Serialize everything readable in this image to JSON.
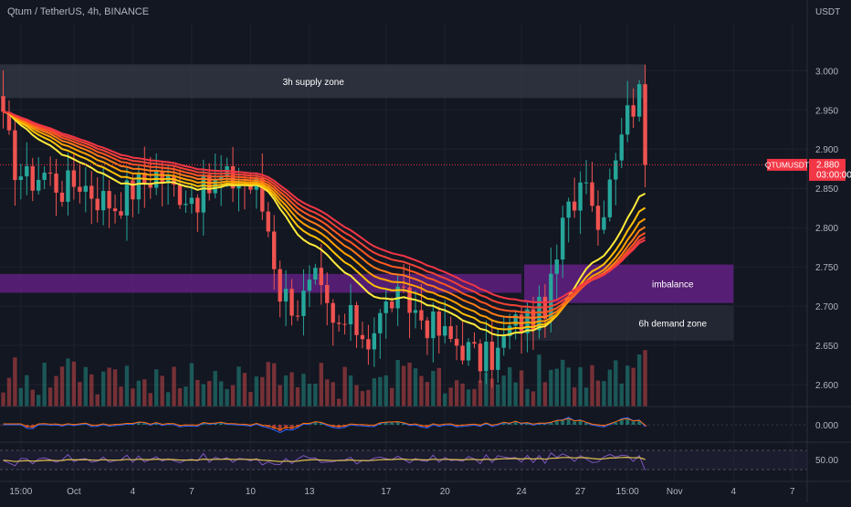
{
  "header": {
    "symbol_title": "Qtum / TetherUS, 4h, BINANCE",
    "currency": "USDT"
  },
  "price_tag": {
    "symbol": "QTUMUSDT",
    "price": "2.880",
    "countdown": "03:00:00",
    "value": 2.88
  },
  "colors": {
    "background": "#131722",
    "grid": "#1e222d",
    "text": "#b2b5be",
    "up": "#26a69a",
    "down": "#ef5350",
    "price_tag": "#f23645",
    "supply_zone": "#363a45",
    "imbalance": "#5b1f7a",
    "demand_zone": "#2a2e39",
    "ribbon": [
      "#f23645",
      "#f44336",
      "#ff5722",
      "#ff7a1a",
      "#ffa000",
      "#ffc107",
      "#ffeb3b"
    ],
    "macd_line": "#2962ff",
    "signal_line": "#ff6d00",
    "rsi_line": "#7e57c2",
    "rsi_ma": "#e0c050"
  },
  "chart_data": {
    "type": "candlestick",
    "symbol": "Qtum / TetherUS",
    "timeframe": "4h",
    "exchange": "BINANCE",
    "currency": "USDT",
    "ylim": [
      2.578,
      3.055
    ],
    "yticks": [
      3.0,
      2.95,
      2.9,
      2.85,
      2.8,
      2.75,
      2.7,
      2.65,
      2.6
    ],
    "ytick_labels": [
      "3.000",
      "2.950",
      "2.900",
      "2.850",
      "2.800",
      "2.750",
      "2.700",
      "2.650",
      "2.600"
    ],
    "x_axis_labels": [
      {
        "label": "15:00",
        "bar": 3
      },
      {
        "label": "Oct",
        "bar": 12
      },
      {
        "label": "4",
        "bar": 22
      },
      {
        "label": "7",
        "bar": 32
      },
      {
        "label": "10",
        "bar": 42
      },
      {
        "label": "13",
        "bar": 52
      },
      {
        "label": "17",
        "bar": 65
      },
      {
        "label": "20",
        "bar": 75
      },
      {
        "label": "24",
        "bar": 88
      },
      {
        "label": "27",
        "bar": 98
      },
      {
        "label": "15:00",
        "bar": 106
      },
      {
        "label": "Nov",
        "bar": 114
      },
      {
        "label": "4",
        "bar": 124
      },
      {
        "label": "7",
        "bar": 134
      }
    ],
    "bars_total": 140,
    "close_anchors": [
      [
        0,
        2.93
      ],
      [
        2,
        2.88
      ],
      [
        4,
        2.86
      ],
      [
        7,
        2.87
      ],
      [
        10,
        2.85
      ],
      [
        13,
        2.86
      ],
      [
        16,
        2.84
      ],
      [
        19,
        2.83
      ],
      [
        22,
        2.85
      ],
      [
        26,
        2.87
      ],
      [
        29,
        2.85
      ],
      [
        33,
        2.84
      ],
      [
        37,
        2.86
      ],
      [
        40,
        2.86
      ],
      [
        43,
        2.85
      ],
      [
        45,
        2.8
      ],
      [
        47,
        2.72
      ],
      [
        50,
        2.7
      ],
      [
        53,
        2.73
      ],
      [
        56,
        2.67
      ],
      [
        59,
        2.68
      ],
      [
        62,
        2.66
      ],
      [
        66,
        2.71
      ],
      [
        69,
        2.7
      ],
      [
        72,
        2.68
      ],
      [
        75,
        2.66
      ],
      [
        78,
        2.65
      ],
      [
        81,
        2.63
      ],
      [
        84,
        2.64
      ],
      [
        86,
        2.67
      ],
      [
        88,
        2.68
      ],
      [
        91,
        2.69
      ],
      [
        93,
        2.72
      ],
      [
        95,
        2.8
      ],
      [
        97,
        2.84
      ],
      [
        99,
        2.88
      ],
      [
        101,
        2.8
      ],
      [
        103,
        2.87
      ],
      [
        105,
        2.93
      ],
      [
        107,
        2.96
      ],
      [
        108,
        3.0
      ],
      [
        109,
        2.88
      ]
    ],
    "last_price": 2.88,
    "ema_ribbon_periods": [
      20,
      25,
      30,
      35,
      40,
      45,
      50
    ],
    "zones": [
      {
        "label": "3h supply zone",
        "from_bar": 0,
        "to_bar": 109,
        "top": 3.008,
        "bottom": 2.965
      },
      {
        "label": "imbalance",
        "from_bar": 0,
        "to_bar": 88,
        "top": 2.741,
        "bottom": 2.717
      },
      {
        "label": "imbalance",
        "from_bar": 89,
        "to_bar": 124,
        "top": 2.753,
        "bottom": 2.704
      },
      {
        "label": "6h demand zone",
        "from_bar": 89,
        "to_bar": 124,
        "top": 2.701,
        "bottom": 2.656
      }
    ],
    "macd_ticks": [
      {
        "label": "0.000",
        "value": 0
      }
    ],
    "rsi_ticks": [
      {
        "label": "50.00",
        "value": 50
      }
    ]
  }
}
